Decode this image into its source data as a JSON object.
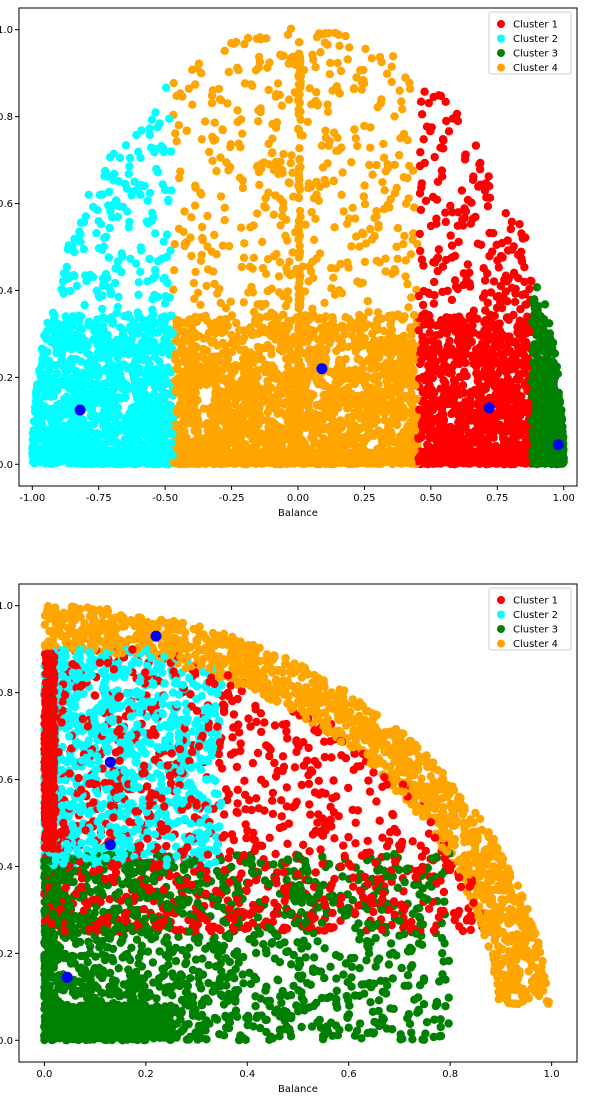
{
  "chart_data": [
    {
      "type": "scatter",
      "title": "",
      "xlabel": "Balance",
      "ylabel": "",
      "xlim": [
        -1.05,
        1.05
      ],
      "ylim": [
        -0.05,
        1.05
      ],
      "xticks": [
        "-1.00",
        "-0.75",
        "-0.50",
        "-0.25",
        "0.00",
        "0.25",
        "0.50",
        "0.75",
        "1.00"
      ],
      "xtick_values": [
        -1.0,
        -0.75,
        -0.5,
        -0.25,
        0.0,
        0.25,
        0.5,
        0.75,
        1.0
      ],
      "yticks": [
        "0.0",
        "0.2",
        "0.4",
        "0.6",
        "0.8",
        "1.0"
      ],
      "ytick_values": [
        0.0,
        0.2,
        0.4,
        0.6,
        0.8,
        1.0
      ],
      "grid": false,
      "legend_position": "top-right",
      "series": [
        {
          "name": "Cluster 1",
          "color": "#ff0000",
          "region": "x from 0.45 to 0.88, within semicircle"
        },
        {
          "name": "Cluster 2",
          "color": "#00ffff",
          "region": "x from -1.00 to -0.47, within semicircle"
        },
        {
          "name": "Cluster 3",
          "color": "#008000",
          "region": "x from 0.88 to 1.00, within semicircle"
        },
        {
          "name": "Cluster 4",
          "color": "#ffa500",
          "region": "x from -0.47 to 0.45, within semicircle"
        }
      ],
      "centroids": {
        "color": "#0000ff",
        "points": [
          {
            "x": 0.72,
            "y": 0.13
          },
          {
            "x": -0.82,
            "y": 0.125
          },
          {
            "x": 0.98,
            "y": 0.045
          },
          {
            "x": 0.09,
            "y": 0.22
          }
        ]
      }
    },
    {
      "type": "scatter",
      "title": "",
      "xlabel": "Balance",
      "ylabel": "",
      "xlim": [
        -0.05,
        1.05
      ],
      "ylim": [
        -0.05,
        1.05
      ],
      "xticks": [
        "0.0",
        "0.2",
        "0.4",
        "0.6",
        "0.8",
        "1.0"
      ],
      "xtick_values": [
        0.0,
        0.2,
        0.4,
        0.6,
        0.8,
        1.0
      ],
      "yticks": [
        "0.0",
        "0.2",
        "0.4",
        "0.6",
        "0.8",
        "1.0"
      ],
      "ytick_values": [
        0.0,
        0.2,
        0.4,
        0.6,
        0.8,
        1.0
      ],
      "grid": false,
      "legend_position": "top-right",
      "series": [
        {
          "name": "Cluster 1",
          "color": "#ff0000",
          "region": "interior of quarter circle, mid radius"
        },
        {
          "name": "Cluster 2",
          "color": "#00ffff",
          "region": "upper-left band, x < 0.3, y 0.4 to 0.9"
        },
        {
          "name": "Cluster 3",
          "color": "#008000",
          "region": "lower-left, y < 0.43"
        },
        {
          "name": "Cluster 4",
          "color": "#ffa500",
          "region": "outer arc band, radius 0.9 to 1.0"
        }
      ],
      "centroids": {
        "color": "#0000ff",
        "points": [
          {
            "x": 0.13,
            "y": 0.64
          },
          {
            "x": 0.22,
            "y": 0.93
          },
          {
            "x": 0.045,
            "y": 0.145
          },
          {
            "x": 0.13,
            "y": 0.45
          }
        ]
      }
    }
  ]
}
